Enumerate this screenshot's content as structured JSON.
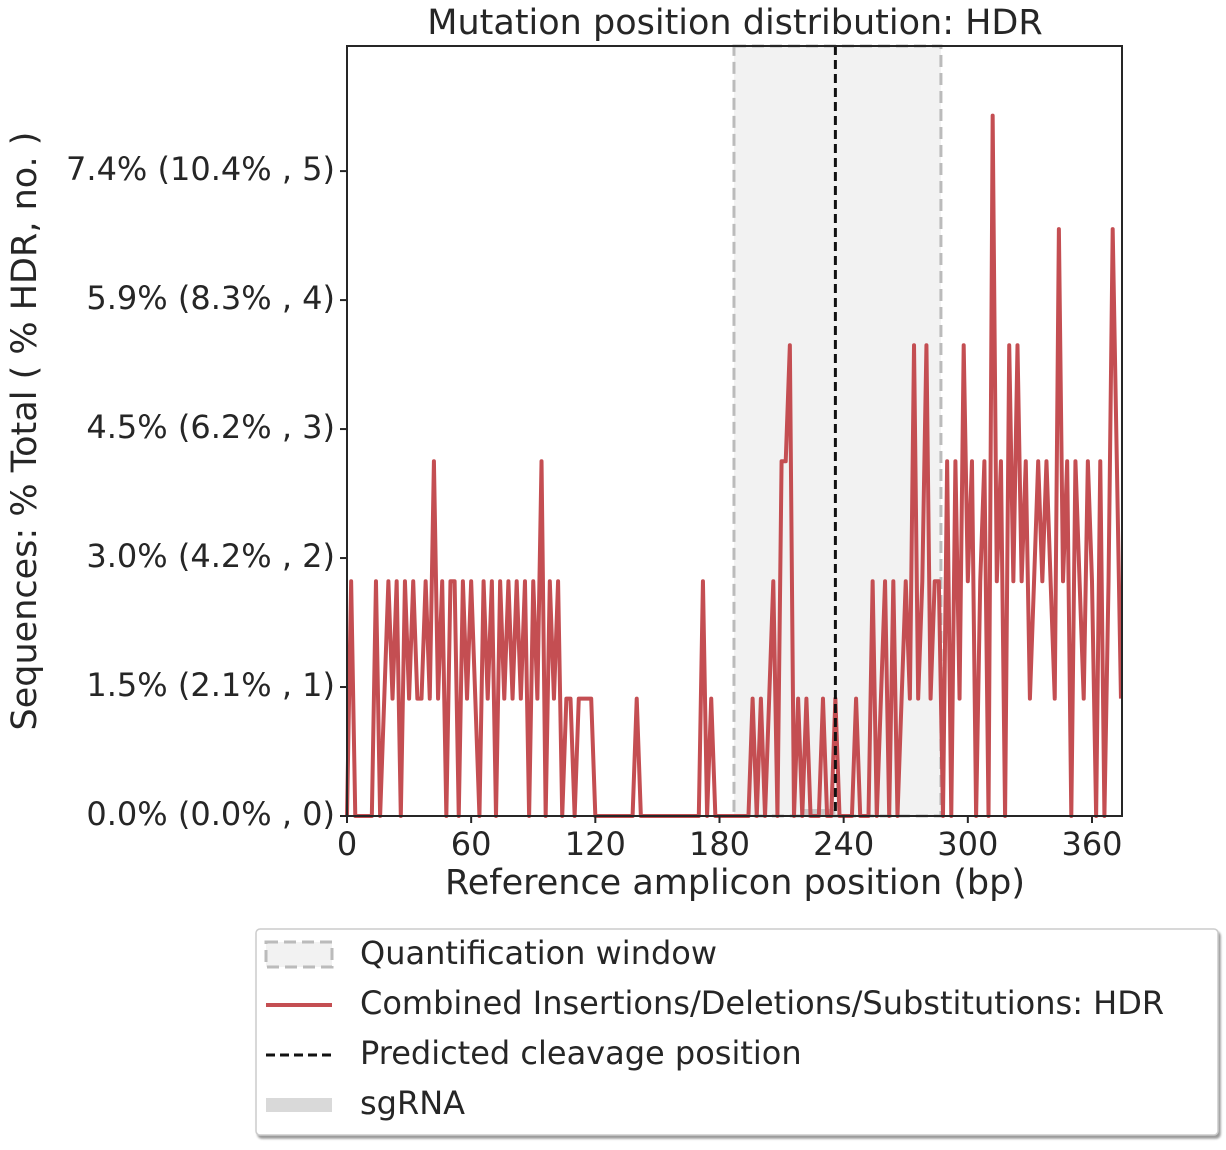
{
  "chart_data": {
    "type": "line",
    "title": "Mutation position distribution: HDR",
    "x_label": "Reference amplicon position (bp)",
    "y_label": "Sequences: % Total ( % HDR, no. )",
    "xlim": [
      0,
      374.5
    ],
    "ylim": [
      0,
      5.97
    ],
    "xticks": [
      0,
      60,
      120,
      180,
      240,
      300,
      360
    ],
    "yticks": [
      {
        "value": 0,
        "label": "0.0% (0.0% , 0)"
      },
      {
        "value": 1,
        "label": "1.5% (2.1% , 1)"
      },
      {
        "value": 2,
        "label": "3.0% (4.2% , 2)"
      },
      {
        "value": 3,
        "label": "4.5% (6.2% , 3)"
      },
      {
        "value": 4,
        "label": "5.9% (8.3% , 4)"
      },
      {
        "value": 5,
        "label": "7.4% (10.4% , 5)"
      }
    ],
    "quantification_window": [
      187,
      287
    ],
    "cleavage_position": 236,
    "sgrna": [
      221,
      236
    ],
    "legend": [
      "Quantification window",
      "Combined Insertions/Deletions/Substitutions: HDR",
      "Predicted cleavage position",
      "sgRNA"
    ],
    "x": [
      0,
      2,
      4,
      6,
      8,
      10,
      12,
      14,
      16,
      18,
      20,
      22,
      24,
      26,
      28,
      30,
      32,
      34,
      36,
      38,
      40,
      42,
      44,
      46,
      48,
      50,
      52,
      54,
      56,
      58,
      60,
      62,
      64,
      66,
      68,
      70,
      72,
      74,
      76,
      78,
      80,
      82,
      84,
      86,
      88,
      90,
      92,
      94,
      96,
      98,
      100,
      102,
      104,
      106,
      108,
      110,
      112,
      114,
      116,
      118,
      120,
      122,
      124,
      126,
      128,
      130,
      132,
      134,
      136,
      138,
      140,
      142,
      144,
      146,
      148,
      150,
      152,
      154,
      156,
      158,
      160,
      162,
      164,
      166,
      168,
      170,
      172,
      174,
      176,
      178,
      180,
      182,
      184,
      186,
      188,
      190,
      192,
      194,
      196,
      198,
      200,
      202,
      204,
      206,
      208,
      210,
      212,
      214,
      216,
      218,
      220,
      222,
      224,
      226,
      228,
      230,
      232,
      234,
      236,
      238,
      240,
      242,
      244,
      246,
      248,
      250,
      252,
      254,
      256,
      258,
      260,
      262,
      264,
      266,
      268,
      270,
      272,
      274,
      276,
      278,
      280,
      282,
      284,
      286,
      288,
      290,
      292,
      294,
      296,
      298,
      300,
      302,
      304,
      306,
      308,
      310,
      312,
      314,
      316,
      318,
      320,
      322,
      324,
      326,
      328,
      330,
      332,
      334,
      336,
      338,
      340,
      342,
      344,
      346,
      348,
      350,
      352,
      354,
      356,
      358,
      360,
      362,
      364,
      366,
      368,
      370,
      372,
      374
    ],
    "series": [
      {
        "name": "Combined Insertions/Deletions/Substitutions: HDR",
        "color": "#c44e52",
        "values": [
          0,
          1.82,
          0,
          0,
          0,
          0,
          0,
          1.82,
          0,
          0.91,
          1.82,
          0.91,
          1.82,
          0,
          1.82,
          0.91,
          1.82,
          0.91,
          0.91,
          1.82,
          0.91,
          2.75,
          0.91,
          1.82,
          0,
          1.82,
          1.82,
          0,
          1.82,
          0.91,
          1.82,
          0.91,
          0,
          1.82,
          0.91,
          1.82,
          0,
          1.82,
          0.91,
          1.82,
          0.91,
          1.82,
          0.91,
          1.82,
          0,
          1.82,
          0.91,
          2.75,
          0,
          1.82,
          0.91,
          1.82,
          0,
          0.91,
          0.91,
          0,
          0.91,
          0.91,
          0.91,
          0.91,
          0,
          0,
          0,
          0,
          0,
          0,
          0,
          0,
          0,
          0,
          0.91,
          0,
          0,
          0,
          0,
          0,
          0,
          0,
          0,
          0,
          0,
          0,
          0,
          0,
          0,
          0,
          1.82,
          0,
          0.91,
          0,
          0,
          0,
          0,
          0,
          0,
          0,
          0,
          0,
          0.91,
          0,
          0.91,
          0,
          0.91,
          1.82,
          0,
          2.75,
          2.75,
          3.65,
          0,
          0.91,
          0,
          0.91,
          0,
          0,
          0,
          0.91,
          0,
          0,
          0.91,
          0,
          0,
          0,
          0,
          0.91,
          0,
          0,
          0,
          1.82,
          0,
          0.91,
          1.82,
          0,
          1.82,
          0,
          0.91,
          1.82,
          0.91,
          3.65,
          0.91,
          1.82,
          3.65,
          0.91,
          1.82,
          1.82,
          0,
          2.75,
          0,
          2.75,
          0.91,
          3.65,
          1.82,
          2.75,
          0,
          1.82,
          2.75,
          0,
          5.43,
          1.82,
          2.75,
          0,
          3.65,
          1.82,
          3.65,
          1.82,
          2.75,
          0.91,
          1.82,
          2.75,
          1.82,
          2.75,
          1.82,
          0.91,
          4.55,
          1.82,
          2.75,
          0,
          2.75,
          1.82,
          0.91,
          2.75,
          1.82,
          0,
          2.75,
          0,
          1.82,
          4.55,
          2.75,
          0.91
        ]
      }
    ]
  }
}
